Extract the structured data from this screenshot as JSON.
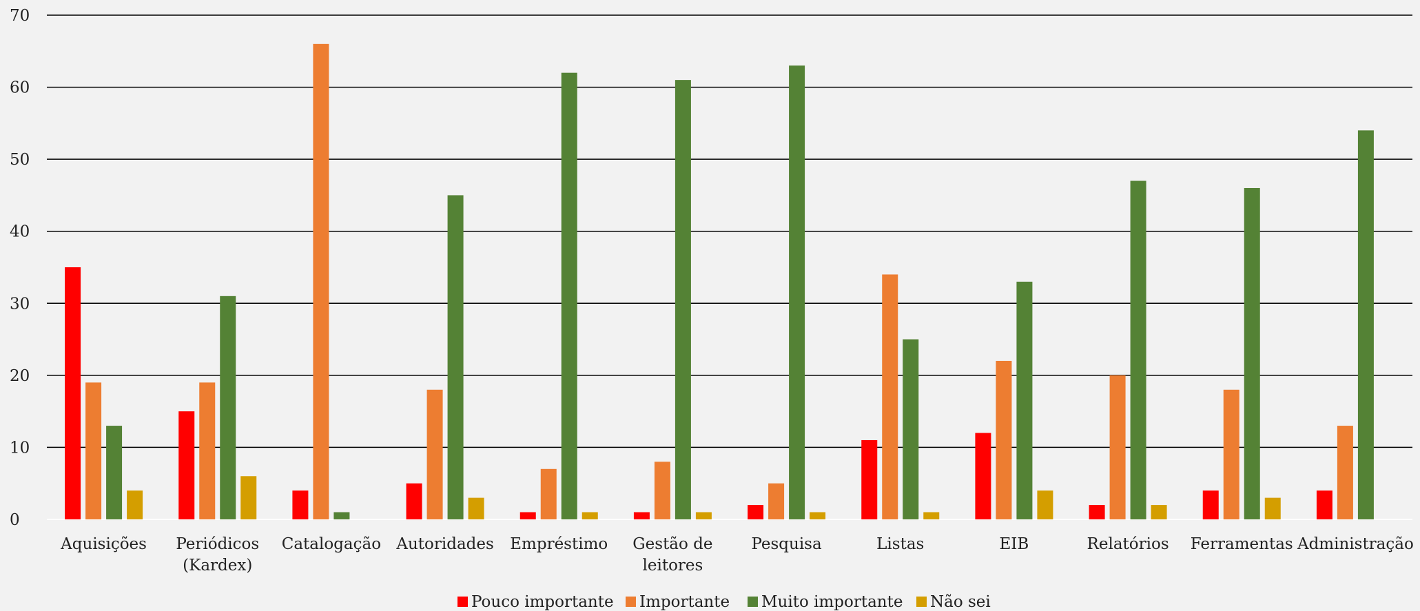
{
  "chart_data": {
    "type": "bar",
    "title": "",
    "xlabel": "",
    "ylabel": "",
    "ylim": [
      0,
      70
    ],
    "yticks": [
      "0",
      "10",
      "20",
      "30",
      "40",
      "50",
      "60",
      "70"
    ],
    "grid": true,
    "legend_position": "bottom",
    "categories": [
      [
        "Aquisições"
      ],
      [
        "Periódicos",
        "(Kardex)"
      ],
      [
        "Catalogação"
      ],
      [
        "Autoridades"
      ],
      [
        "Empréstimo"
      ],
      [
        "Gestão de",
        "leitores"
      ],
      [
        "Pesquisa"
      ],
      [
        "Listas"
      ],
      [
        "EIB"
      ],
      [
        "Relatórios"
      ],
      [
        "Ferramentas"
      ],
      [
        "Administração"
      ]
    ],
    "series": [
      {
        "name": "Pouco importante",
        "color": "#ff0000",
        "values": [
          35,
          15,
          4,
          5,
          1,
          1,
          2,
          11,
          12,
          2,
          4,
          4
        ]
      },
      {
        "name": "Importante",
        "color": "#ed7d31",
        "values": [
          19,
          19,
          66,
          18,
          7,
          8,
          5,
          34,
          22,
          20,
          18,
          13
        ]
      },
      {
        "name": "Muito importante",
        "color": "#548235",
        "values": [
          13,
          31,
          1,
          45,
          62,
          61,
          63,
          25,
          33,
          47,
          46,
          54
        ]
      },
      {
        "name": "Não sei",
        "color": "#d49e00",
        "values": [
          4,
          6,
          0,
          3,
          1,
          1,
          1,
          1,
          4,
          2,
          3,
          0
        ]
      }
    ]
  }
}
